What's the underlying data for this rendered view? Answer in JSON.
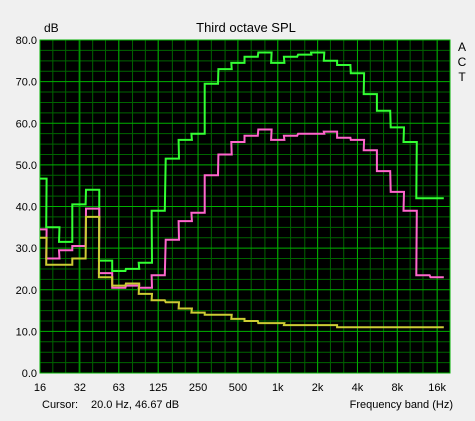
{
  "colors": {
    "background": "#f0f0f0",
    "plot_background": "#000000",
    "grid_major": "#00b000",
    "grid_minor": "#006400",
    "series_A": "#33ff33",
    "series_C": "#ff66cc",
    "series_T": "#cccc33"
  },
  "status": {
    "cursor_label": "Cursor:",
    "cursor_value": "20.0 Hz, 46.67 dB"
  },
  "chart_data": {
    "type": "line",
    "title": "Third octave SPL",
    "ylabel": "dB",
    "xlabel": "Frequency band (Hz)",
    "x_scale": "log",
    "grid": true,
    "ylim": [
      0,
      80
    ],
    "y_ticks": [
      0,
      10,
      20,
      30,
      40,
      50,
      60,
      70,
      80
    ],
    "y_tick_labels": [
      "0.0",
      "10.0",
      "20.0",
      "30.0",
      "40.0",
      "50.0",
      "60.0",
      "70.0",
      "80.0"
    ],
    "x_ticks": [
      16,
      32,
      63,
      125,
      250,
      500,
      1000,
      2000,
      4000,
      8000,
      16000
    ],
    "x_tick_labels": [
      "16",
      "32",
      "63",
      "125",
      "250",
      "500",
      "1k",
      "2k",
      "4k",
      "8k",
      "16k"
    ],
    "x_range": [
      16,
      20000
    ],
    "legend_position": "right",
    "x": [
      16,
      20,
      25,
      31.5,
      40,
      50,
      63,
      80,
      100,
      125,
      160,
      200,
      250,
      315,
      400,
      500,
      630,
      800,
      1000,
      1250,
      1600,
      2000,
      2500,
      3150,
      4000,
      5000,
      6300,
      8000,
      10000,
      12500,
      16000
    ],
    "series": [
      {
        "name": "A",
        "values": [
          46.7,
          35,
          31.5,
          40.5,
          44,
          27,
          24.5,
          25,
          26.5,
          39,
          51.5,
          56,
          57.5,
          69.5,
          73,
          74.5,
          76,
          77,
          74.5,
          76,
          76.5,
          77,
          75,
          74,
          72,
          67,
          63,
          59,
          55.5,
          42,
          42
        ]
      },
      {
        "name": "C",
        "values": [
          34.5,
          27.5,
          29.5,
          30.5,
          39.5,
          24,
          20.5,
          21,
          20.5,
          23.5,
          32,
          36.5,
          38.5,
          47.5,
          52.5,
          55.5,
          57,
          58.5,
          56,
          57,
          57.5,
          57.5,
          58,
          56.5,
          56,
          53.5,
          48.5,
          43.5,
          39,
          23.5,
          23
        ]
      },
      {
        "name": "T",
        "values": [
          32.5,
          26,
          26,
          27.5,
          37.5,
          23,
          21,
          21.5,
          19,
          17.5,
          17,
          15.5,
          14.5,
          14,
          14,
          13,
          12.5,
          12,
          12,
          11.5,
          11.5,
          11.5,
          11.5,
          11,
          11,
          11,
          11,
          11,
          11,
          11,
          11
        ]
      }
    ]
  }
}
